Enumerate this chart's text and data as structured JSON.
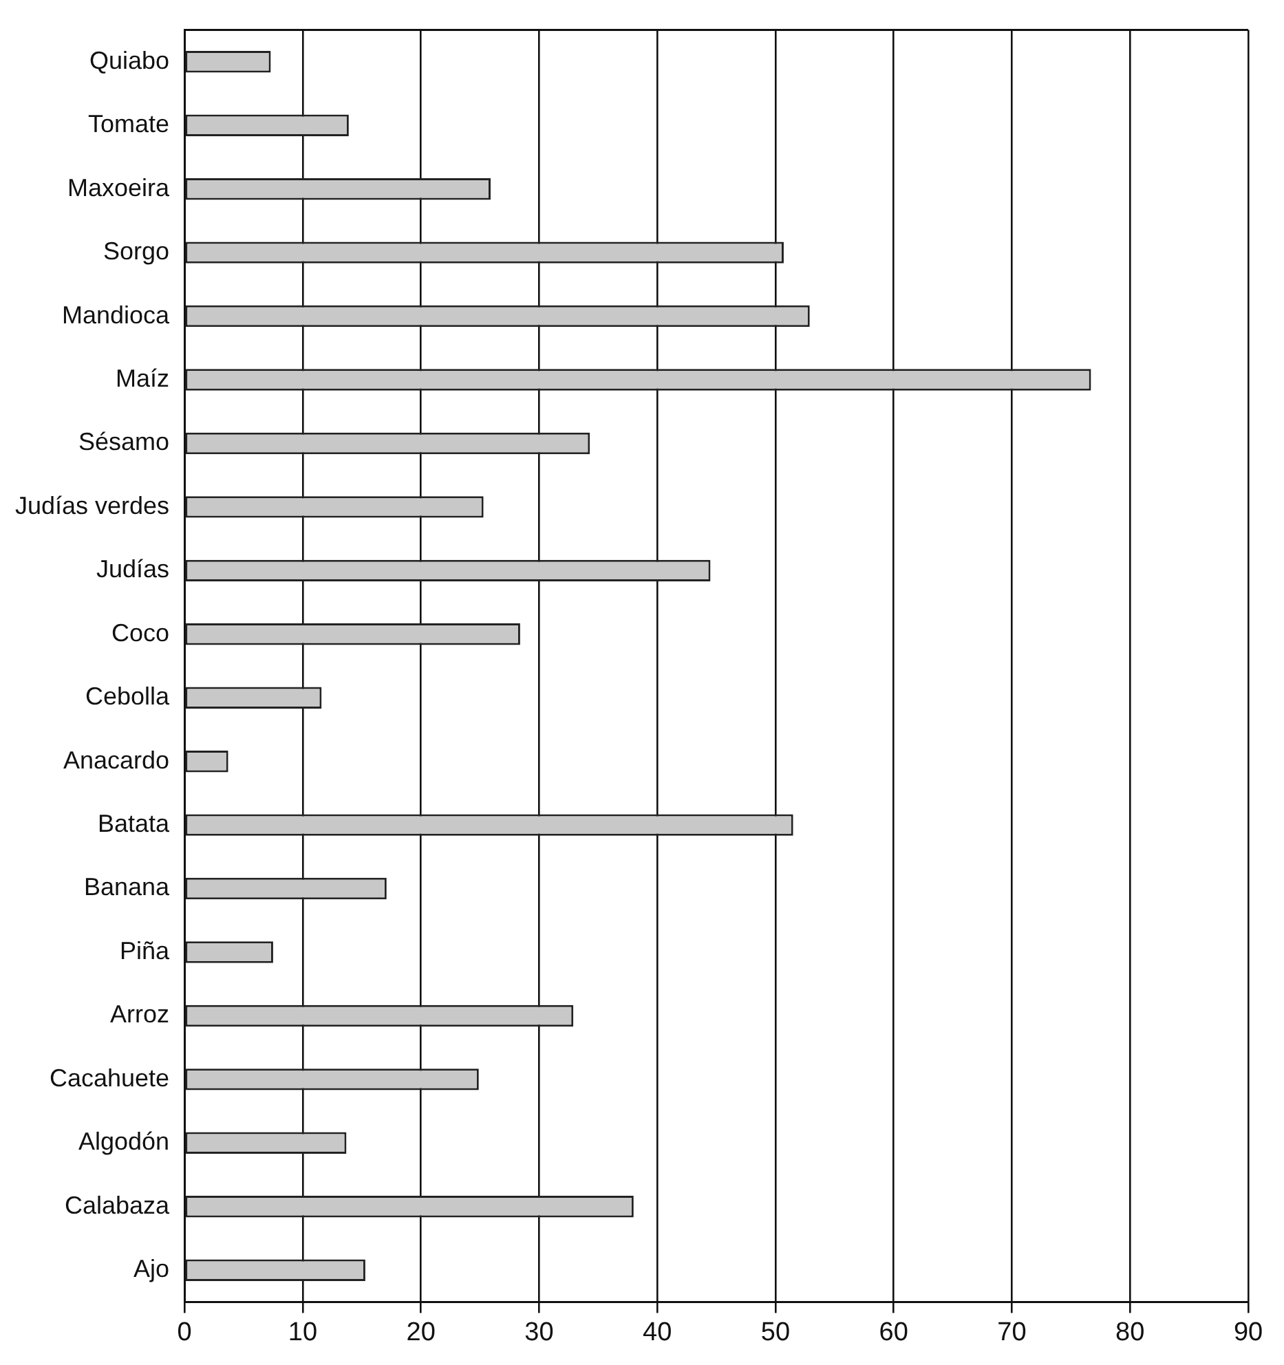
{
  "chart_data": {
    "type": "bar",
    "orientation": "horizontal",
    "categories": [
      "Quiabo",
      "Tomate",
      "Maxoeira",
      "Sorgo",
      "Mandioca",
      "Maíz",
      "Sésamo",
      "Judías verdes",
      "Judías",
      "Coco",
      "Cebolla",
      "Anacardo",
      "Batata",
      "Banana",
      "Piña",
      "Arroz",
      "Cacahuete",
      "Algodón",
      "Calabaza",
      "Ajo"
    ],
    "values": [
      7.3,
      13.9,
      25.9,
      50.7,
      52.9,
      76.7,
      34.3,
      25.3,
      44.5,
      28.4,
      11.6,
      3.7,
      51.5,
      17.1,
      7.5,
      32.9,
      24.9,
      13.7,
      38.0,
      15.3
    ],
    "color": "#c8c8c8",
    "xlim": [
      0,
      90
    ],
    "xticks": [
      0,
      10,
      20,
      30,
      40,
      50,
      60,
      70,
      80,
      90
    ],
    "grid": "x",
    "legend": false
  }
}
